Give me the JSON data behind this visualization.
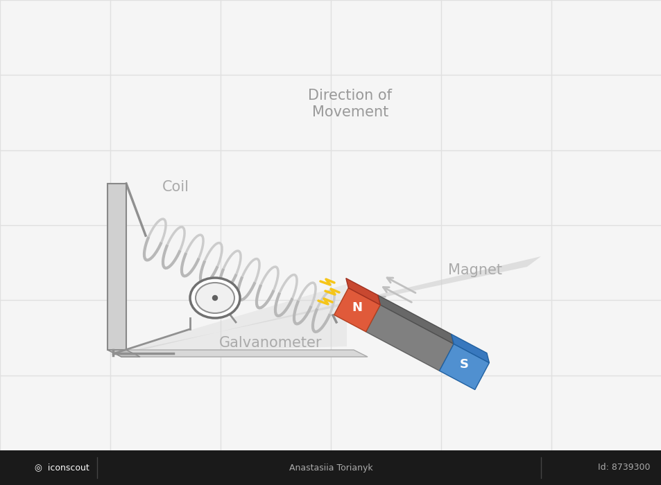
{
  "bg_color": "#f5f5f5",
  "grid_color": "#e0e0e0",
  "coil_color": "#b8b8b8",
  "coil_lw": 3.0,
  "circuit_color": "#909090",
  "magnet_N_color": "#e05a3a",
  "magnet_S_color": "#5090d0",
  "label_color": "#aaaaaa",
  "label_fontsize": 15,
  "text_direction": "Direction of\nMovement",
  "text_coil": "Coil",
  "text_magnet": "Magnet",
  "text_galvanometer": "Galvanometer",
  "arrow_color": "#c0c0c0",
  "spark_color": "#f5c518",
  "shadow_color": "#d0d0d0",
  "bottom_bar_color": "#1a1a1a",
  "bottom_text_color": "#ffffff",
  "panel_face": "#d8d8d8",
  "panel_edge": "#888888",
  "wire_color": "#909090"
}
